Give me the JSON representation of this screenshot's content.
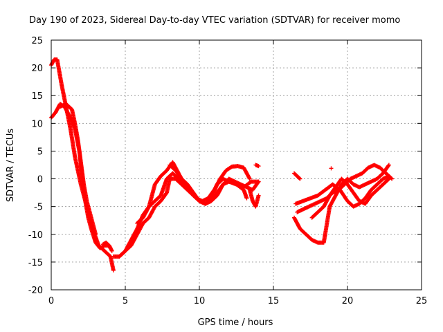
{
  "chart_data": {
    "type": "scatter",
    "title": "Day 190 of 2023, Sidereal Day-to-day VTEC variation (SDTVAR) for receiver momo",
    "xlabel": "GPS time / hours",
    "ylabel": "SDTVAR / TECUs",
    "xlim": [
      0,
      25
    ],
    "ylim": [
      -20,
      25
    ],
    "xticks": [
      0,
      5,
      10,
      15,
      20,
      25
    ],
    "yticks": [
      -20,
      -15,
      -10,
      -5,
      0,
      5,
      10,
      15,
      20,
      25
    ],
    "grid": true,
    "marker": "+",
    "color": "#ff0000",
    "series": [
      {
        "name": "trace-1",
        "x": [
          0.0,
          0.2,
          0.4,
          0.7,
          1.0,
          1.3,
          1.6,
          2.0,
          2.4,
          2.8,
          3.2,
          3.6,
          4.0,
          4.2
        ],
        "y": [
          20.5,
          21.5,
          21.5,
          17,
          13,
          9,
          4,
          -1,
          -5,
          -9,
          -12,
          -13,
          -14,
          -16.5
        ]
      },
      {
        "name": "trace-2",
        "x": [
          0.0,
          0.3,
          0.6,
          0.9,
          1.1,
          1.3,
          1.6,
          1.9,
          2.1,
          2.3,
          2.5,
          2.7,
          3.0,
          3.3,
          3.6,
          3.9,
          4.1
        ],
        "y": [
          11,
          12,
          13.5,
          13,
          12,
          11,
          9,
          5,
          0,
          -4,
          -7,
          -9,
          -11.5,
          -12.5,
          -12,
          -12,
          -13
        ]
      },
      {
        "name": "trace-3",
        "x": [
          0.6,
          1.0,
          1.4,
          1.6,
          1.8,
          2.0,
          2.2,
          2.4,
          2.6,
          2.8,
          3.0
        ],
        "y": [
          13,
          13.5,
          12.5,
          10,
          7,
          3,
          -1,
          -4,
          -6,
          -8,
          -10
        ]
      },
      {
        "name": "trace-4",
        "x": [
          4.2,
          4.6,
          5.0,
          5.4,
          5.8,
          6.2,
          6.6,
          7.0,
          7.4,
          7.8,
          8.2,
          8.4,
          8.8,
          9.2,
          9.6,
          10.0,
          10.4,
          10.8,
          11.2,
          11.6,
          12.0,
          12.5,
          13.0,
          13.5,
          14.0
        ],
        "y": [
          -14,
          -14,
          -13,
          -11,
          -9,
          -6.5,
          -5,
          -1,
          0.5,
          1.5,
          3,
          2,
          0,
          -1.5,
          -3,
          -4,
          -4.5,
          -3.5,
          -1,
          0,
          -0.5,
          -1,
          -1.5,
          -0.5,
          -0.5
        ]
      },
      {
        "name": "trace-5",
        "x": [
          4.6,
          5.0,
          5.4,
          5.8,
          6.2,
          6.6,
          7.0,
          7.4,
          7.8,
          8.0,
          8.4,
          8.8,
          9.2,
          9.6,
          10.0,
          10.4,
          10.8,
          11.2,
          11.6,
          12.0,
          12.4,
          12.8,
          13.2,
          13.6,
          14.0
        ],
        "y": [
          -14,
          -13,
          -12,
          -10,
          -8,
          -7,
          -5,
          -4,
          -2.5,
          0,
          0,
          -1,
          -2,
          -3,
          -4,
          -4.5,
          -4,
          -3,
          -1,
          0,
          -0.5,
          -1,
          -1.5,
          -2,
          -0.5
        ]
      },
      {
        "name": "trace-6",
        "x": [
          5.8,
          6.2,
          6.6,
          7.0,
          7.4,
          7.8,
          8.2,
          8.6,
          9.0,
          9.4,
          9.8,
          10.2,
          10.6,
          11.0,
          11.4,
          11.8,
          12.2,
          12.6,
          13.0,
          13.4
        ],
        "y": [
          -8,
          -7,
          -5,
          -4,
          -3,
          0,
          1,
          0,
          -1,
          -2.5,
          -3.5,
          -4,
          -3.5,
          -2,
          0,
          1.5,
          2.2,
          2.3,
          2,
          0
        ]
      },
      {
        "name": "trace-7",
        "x": [
          8.0,
          8.4,
          8.8,
          9.2,
          9.6,
          10.0,
          10.4,
          10.8,
          11.2,
          11.6,
          12.0,
          12.5,
          13.0,
          13.2
        ],
        "y": [
          2.5,
          1.5,
          0,
          -1,
          -2.5,
          -4,
          -4.5,
          -4,
          -2.5,
          -1,
          -0.5,
          -1,
          -2,
          -3.5
        ]
      },
      {
        "name": "trace-8",
        "x": [
          13.4,
          13.6,
          13.8,
          14.0
        ],
        "y": [
          -2,
          -4,
          -5,
          -3
        ]
      },
      {
        "name": "trace-9",
        "x": [
          13.8,
          14.0
        ],
        "y": [
          2.5,
          2.3
        ]
      },
      {
        "name": "trace-10",
        "x": [
          3.5,
          3.7,
          3.9,
          4.0
        ],
        "y": [
          -11.8,
          -11.5,
          -12,
          -12.5
        ]
      },
      {
        "name": "trace-11",
        "x": [
          16.4,
          16.6,
          16.8,
          17.0,
          17.2,
          17.6,
          18.0,
          18.4,
          18.8,
          19.2,
          19.6,
          20.0,
          20.4,
          20.8,
          21.2,
          21.6,
          22.0,
          22.4,
          22.8
        ],
        "y": [
          -7,
          -8,
          -9,
          -9.5,
          -10,
          -11,
          -11.5,
          -11.5,
          -5,
          -3,
          -1,
          0,
          -1,
          -1.5,
          -1,
          -0.5,
          0,
          1,
          2.5
        ]
      },
      {
        "name": "trace-12",
        "x": [
          16.5,
          17.0,
          17.5,
          18.0,
          18.5,
          19.0,
          19.5,
          20.0,
          20.4,
          20.8,
          21.2,
          21.6,
          22.0,
          22.4,
          22.8
        ],
        "y": [
          -4.5,
          -4,
          -3.5,
          -3,
          -2,
          -1,
          -2,
          -4,
          -5,
          -4.5,
          -3.5,
          -2,
          -1,
          0,
          0.5
        ]
      },
      {
        "name": "trace-13",
        "x": [
          16.6,
          17.0,
          17.4,
          17.8,
          18.2,
          18.6,
          19.0,
          19.4,
          19.8,
          20.2,
          20.6,
          21.0,
          21.4,
          21.8,
          22.2,
          22.6,
          23.0
        ],
        "y": [
          -6,
          -5.5,
          -5,
          -4.5,
          -4,
          -3.5,
          -2.5,
          -2,
          -1,
          0,
          0.5,
          1,
          2,
          2.5,
          2,
          1,
          0
        ]
      },
      {
        "name": "trace-14",
        "x": [
          16.4,
          16.6,
          16.8
        ],
        "y": [
          1,
          0.5,
          0
        ]
      },
      {
        "name": "trace-15",
        "x": [
          17.6,
          18.0,
          18.4,
          18.8,
          19.2,
          19.6,
          20.0,
          20.4,
          20.8,
          21.2,
          21.6,
          22.0,
          22.4,
          22.8
        ],
        "y": [
          -7,
          -6,
          -5,
          -3,
          -1.5,
          0,
          -1,
          -2.5,
          -4,
          -4.5,
          -3,
          -2,
          -1,
          0
        ]
      },
      {
        "name": "trace-16",
        "x": [
          18.9
        ],
        "y": [
          1.9
        ]
      }
    ]
  }
}
